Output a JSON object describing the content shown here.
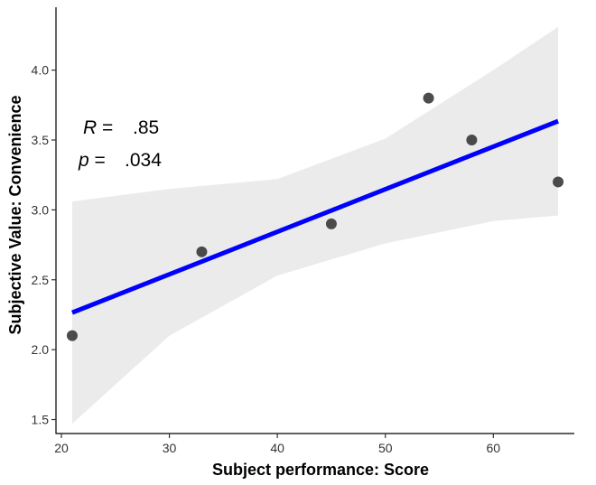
{
  "chart_data": {
    "type": "scatter",
    "xlabel": "Subject performance: Score",
    "ylabel": "Subjective Value: Convenience",
    "xlim": [
      19.5,
      67.5
    ],
    "ylim": [
      1.4,
      4.45
    ],
    "x_ticks": [
      20,
      30,
      40,
      50,
      60
    ],
    "y_ticks": [
      1.5,
      2.0,
      2.5,
      3.0,
      3.5,
      4.0
    ],
    "x_tick_labels": [
      "20",
      "30",
      "40",
      "50",
      "60"
    ],
    "y_tick_labels": [
      "1.5",
      "2.0",
      "2.5",
      "3.0",
      "3.5",
      "4.0"
    ],
    "grid": false,
    "points": [
      {
        "x": 21,
        "y": 2.1
      },
      {
        "x": 33,
        "y": 2.7
      },
      {
        "x": 45,
        "y": 2.9
      },
      {
        "x": 54,
        "y": 3.8
      },
      {
        "x": 58,
        "y": 3.5
      },
      {
        "x": 66,
        "y": 3.2
      }
    ],
    "fit_line": {
      "x": [
        21,
        66
      ],
      "y": [
        2.265,
        3.635
      ],
      "color": "#0000FF"
    },
    "confidence_band": {
      "x": [
        21,
        30,
        40,
        50,
        60,
        66
      ],
      "lower": [
        1.47,
        2.1,
        2.53,
        2.76,
        2.92,
        2.96
      ],
      "upper": [
        3.06,
        3.15,
        3.22,
        3.51,
        4.0,
        4.31
      ],
      "color": "#EBEBEB"
    },
    "point_color": "#333333",
    "annotation": {
      "r_label": "R",
      "r_eq": " =",
      "r_value": ".85",
      "p_label": "p",
      "p_eq": " =",
      "p_value": ".034"
    }
  }
}
